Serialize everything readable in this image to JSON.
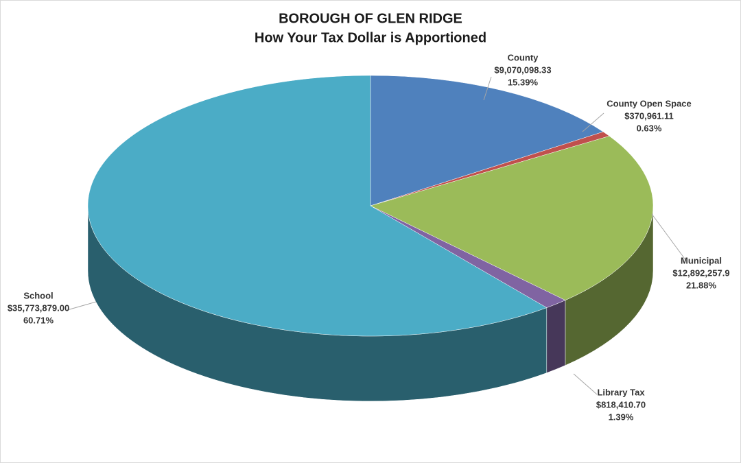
{
  "chart_data": {
    "type": "pie3d",
    "title": "BOROUGH OF GLEN RIDGE",
    "subtitle": "How Your Tax Dollar is Apportioned",
    "categories": [
      "County",
      "County Open Space",
      "Municipal",
      "Library Tax",
      "School"
    ],
    "values": [
      15.39,
      0.63,
      21.88,
      1.39,
      60.71
    ],
    "value_labels": [
      "15.39%",
      "0.63%",
      "21.88%",
      "1.39%",
      "60.71%"
    ],
    "amount_labels": [
      "$9,070,098.33",
      "$370,961.11",
      "$12,892,257.9",
      "$818,410.70",
      "$35,773,879.00"
    ],
    "colors": [
      "#4f81bd",
      "#c0504d",
      "#9bbb59",
      "#8064a2",
      "#4bacc6"
    ]
  }
}
